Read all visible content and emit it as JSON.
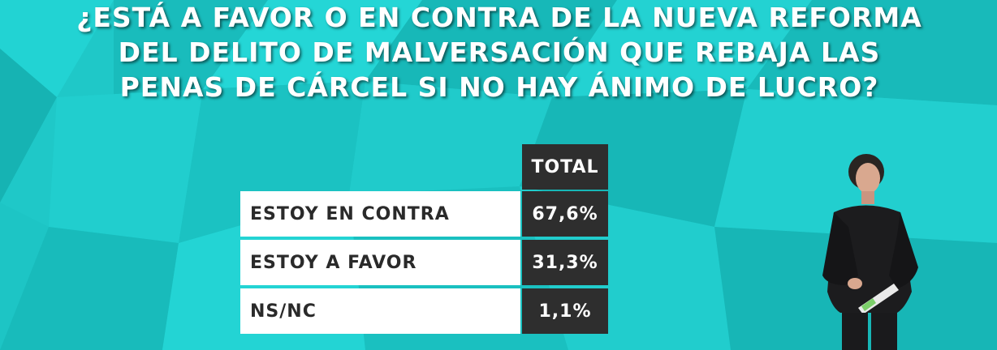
{
  "colors": {
    "background": "#1ec9c9",
    "cell_dark": "#2e2e2e",
    "cell_light": "#ffffff",
    "title_text": "#ffffff"
  },
  "question": {
    "line1": "¿ESTÁ A FAVOR O EN CONTRA DE LA NUEVA REFORMA",
    "line2": "DEL DELITO DE MALVERSACIÓN QUE REBAJA LAS",
    "line3": "PENAS DE CÁRCEL SI NO HAY ÁNIMO DE LUCRO?"
  },
  "table": {
    "header": "TOTAL",
    "rows": [
      {
        "label": "ESTOY EN CONTRA",
        "value": "67,6%"
      },
      {
        "label": "ESTOY A FAVOR",
        "value": "31,3%"
      },
      {
        "label": "NS/NC",
        "value": "1,1%"
      }
    ]
  }
}
